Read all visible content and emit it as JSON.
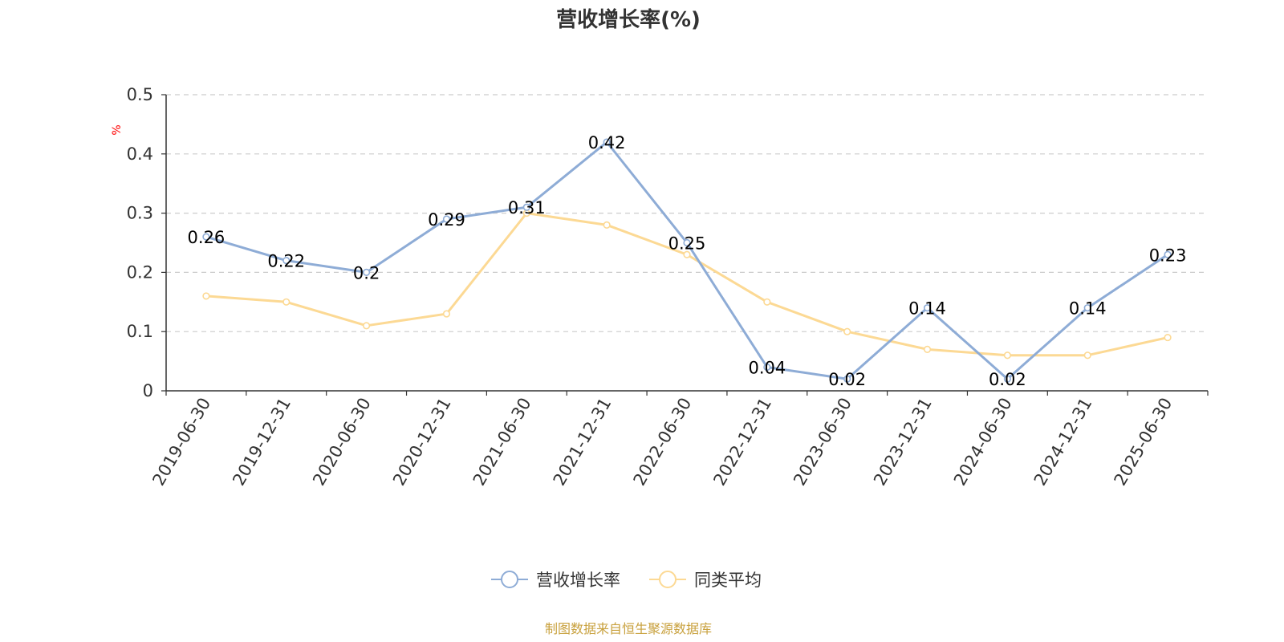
{
  "colors": {
    "series_primary": "#8eacd6",
    "series_secondary": "#fcd994",
    "axis": "#333333",
    "grid": "#cccccc",
    "unit": "#ff0000",
    "source": "#c8a03c"
  },
  "chart_data": {
    "type": "line",
    "title": "营收增长率(%)",
    "ylabel": "%",
    "xlabel": "",
    "ylim": [
      0,
      0.5
    ],
    "yticks": [
      "0",
      "0.1",
      "0.2",
      "0.3",
      "0.4",
      "0.5"
    ],
    "grid": true,
    "legend_position": "bottom-center",
    "categories": [
      "2019-06-30",
      "2019-12-31",
      "2020-06-30",
      "2020-12-31",
      "2021-06-30",
      "2021-12-31",
      "2022-06-30",
      "2022-12-31",
      "2023-06-30",
      "2023-12-31",
      "2024-06-30",
      "2024-12-31",
      "2025-06-30"
    ],
    "series": [
      {
        "name": "营收增长率",
        "values": [
          0.26,
          0.22,
          0.2,
          0.29,
          0.31,
          0.42,
          0.25,
          0.04,
          0.02,
          0.14,
          0.02,
          0.14,
          0.23
        ],
        "labels": [
          "0.26",
          "0.22",
          "0.2",
          "0.29",
          "0.31",
          "0.42",
          "0.25",
          "0.04",
          "0.02",
          "0.14",
          "0.02",
          "0.14",
          "0.23"
        ]
      },
      {
        "name": "同类平均",
        "values": [
          0.16,
          0.15,
          0.11,
          0.13,
          0.3,
          0.28,
          0.23,
          0.15,
          0.1,
          0.07,
          0.06,
          0.06,
          0.09
        ]
      }
    ]
  },
  "source_note": "制图数据来自恒生聚源数据库"
}
